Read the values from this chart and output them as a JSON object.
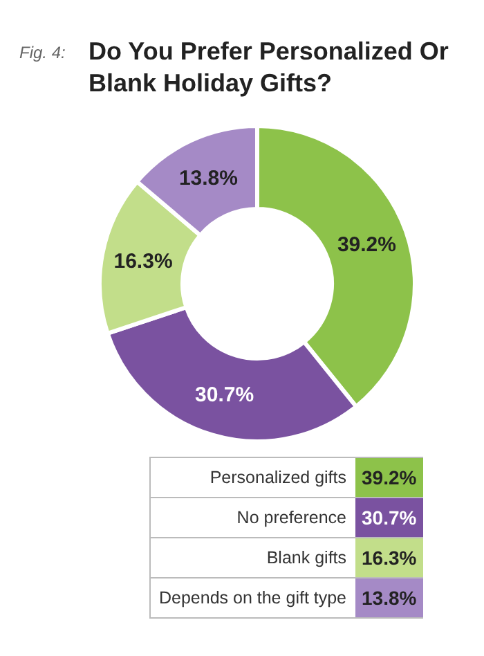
{
  "chart_data": {
    "type": "donut",
    "title": "Do You Prefer Personalized Or Blank Holiday Gifts?",
    "annotations": [
      "Fig. 4:"
    ],
    "categories": [
      "Personalized gifts",
      "No preference",
      "Blank gifts",
      "Depends on the gift type"
    ],
    "values": [
      39.2,
      30.7,
      16.3,
      13.8
    ],
    "colors": [
      "#8dc24a",
      "#7a52a0",
      "#c2de8a",
      "#a58ac6"
    ],
    "value_labels": [
      "39.2%",
      "30.7%",
      "16.3%",
      "13.8%"
    ],
    "legend": "bottom"
  }
}
